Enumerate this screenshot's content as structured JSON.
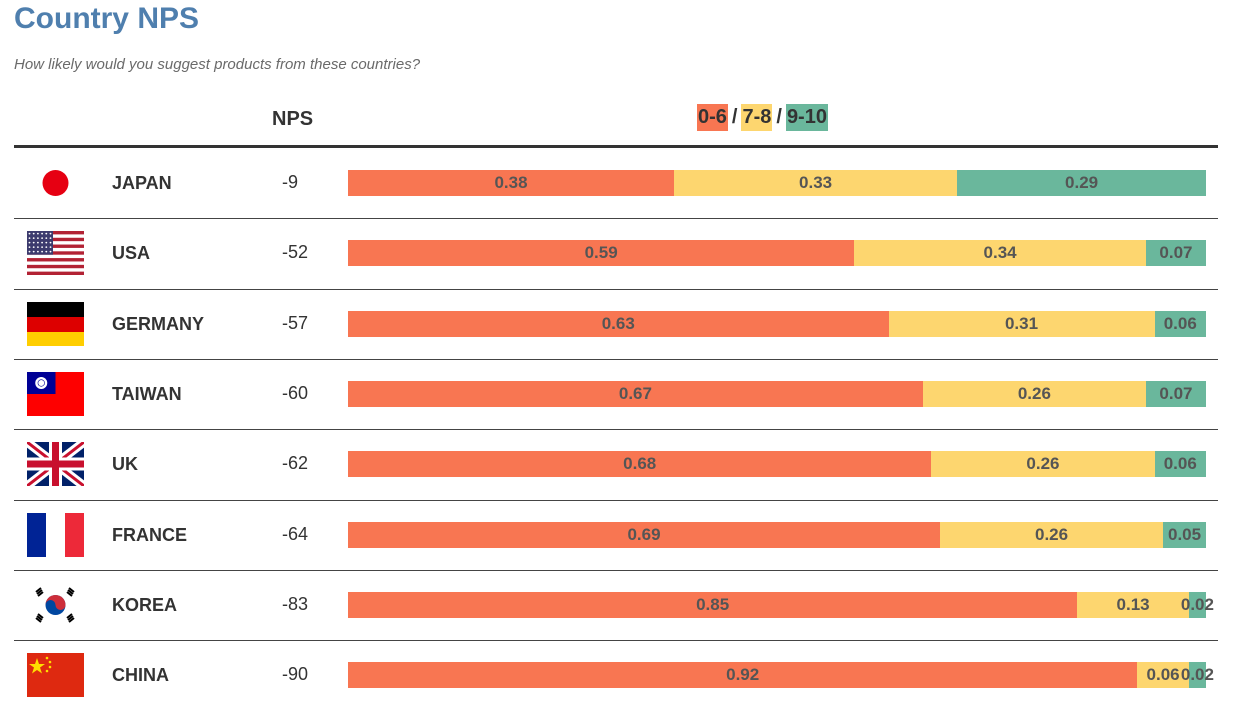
{
  "header": {
    "title": "Country NPS",
    "subtitle": "How likely would you suggest products from these countries?",
    "nps_label": "NPS",
    "legend": [
      {
        "label": "0-6",
        "color": "#f87652"
      },
      {
        "label": "7-8",
        "color": "#fdd66f"
      },
      {
        "label": "9-10",
        "color": "#6ab79c"
      }
    ],
    "legend_sep": "/"
  },
  "chart_data": {
    "type": "bar",
    "stacked": true,
    "orientation": "horizontal",
    "title": "Country NPS",
    "subtitle": "How likely would you suggest products from these countries?",
    "categories": [
      "JAPAN",
      "USA",
      "GERMANY",
      "TAIWAN",
      "UK",
      "FRANCE",
      "KOREA",
      "CHINA"
    ],
    "nps": [
      "-9",
      "-52",
      "-57",
      "-60",
      "-62",
      "-64",
      "-83",
      "-90"
    ],
    "series": [
      {
        "name": "0-6",
        "color": "#f87652",
        "values": [
          0.38,
          0.59,
          0.63,
          0.67,
          0.68,
          0.69,
          0.85,
          0.92
        ]
      },
      {
        "name": "7-8",
        "color": "#fdd66f",
        "values": [
          0.33,
          0.34,
          0.31,
          0.26,
          0.26,
          0.26,
          0.13,
          0.06
        ]
      },
      {
        "name": "9-10",
        "color": "#6ab79c",
        "values": [
          0.29,
          0.07,
          0.06,
          0.07,
          0.06,
          0.05,
          0.02,
          0.02
        ]
      }
    ],
    "flags": [
      "japan-flag-icon",
      "usa-flag-icon",
      "germany-flag-icon",
      "taiwan-flag-icon",
      "uk-flag-icon",
      "france-flag-icon",
      "korea-flag-icon",
      "china-flag-icon"
    ]
  }
}
